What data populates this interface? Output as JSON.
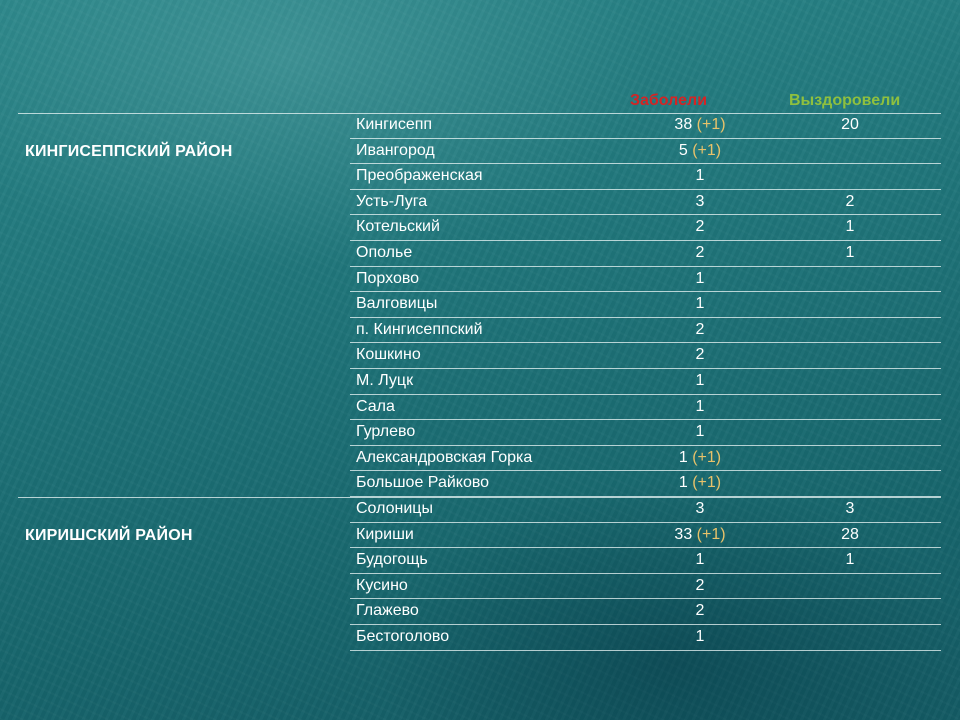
{
  "headers": {
    "sick": "Заболели",
    "recovered": "Выздоровели"
  },
  "colors": {
    "sick_header": "#d42424",
    "recovered_header": "#8fc03e",
    "delta": "#e8c26a"
  },
  "groups": [
    {
      "district": "КИНГИСЕППСКИЙ РАЙОН",
      "rows": [
        {
          "name": "Кингисепп",
          "sick": "38",
          "delta": "(+1)",
          "recovered": "20"
        },
        {
          "name": "Ивангород",
          "sick": "5",
          "delta": "(+1)",
          "recovered": ""
        },
        {
          "name": "Преображенская",
          "sick": "1",
          "delta": "",
          "recovered": ""
        },
        {
          "name": "Усть-Луга",
          "sick": "3",
          "delta": "",
          "recovered": "2"
        },
        {
          "name": "Котельский",
          "sick": "2",
          "delta": "",
          "recovered": "1"
        },
        {
          "name": "Ополье",
          "sick": "2",
          "delta": "",
          "recovered": "1"
        },
        {
          "name": "Порхово",
          "sick": "1",
          "delta": "",
          "recovered": ""
        },
        {
          "name": "Валговицы",
          "sick": "1",
          "delta": "",
          "recovered": ""
        },
        {
          "name": "п. Кингисеппский",
          "sick": "2",
          "delta": "",
          "recovered": ""
        },
        {
          "name": "Кошкино",
          "sick": "2",
          "delta": "",
          "recovered": ""
        },
        {
          "name": "М. Луцк",
          "sick": "1",
          "delta": "",
          "recovered": ""
        },
        {
          "name": "Сала",
          "sick": "1",
          "delta": "",
          "recovered": ""
        },
        {
          "name": "Гурлево",
          "sick": "1",
          "delta": "",
          "recovered": ""
        },
        {
          "name": "Александровская Горка",
          "sick": "1",
          "delta": "(+1)",
          "recovered": ""
        },
        {
          "name": "Большое Райково",
          "sick": "1",
          "delta": "(+1)",
          "recovered": ""
        }
      ]
    },
    {
      "district": "КИРИШСКИЙ РАЙОН",
      "rows": [
        {
          "name": "Солоницы",
          "sick": "3",
          "delta": "",
          "recovered": "3"
        },
        {
          "name": "Кириши",
          "sick": "33",
          "delta": "(+1)",
          "recovered": "28"
        },
        {
          "name": "Будогощь",
          "sick": "1",
          "delta": "",
          "recovered": "1"
        },
        {
          "name": "Кусино",
          "sick": "2",
          "delta": "",
          "recovered": ""
        },
        {
          "name": "Глажево",
          "sick": "2",
          "delta": "",
          "recovered": ""
        },
        {
          "name": "Бестоголово",
          "sick": "1",
          "delta": "",
          "recovered": ""
        }
      ]
    }
  ]
}
